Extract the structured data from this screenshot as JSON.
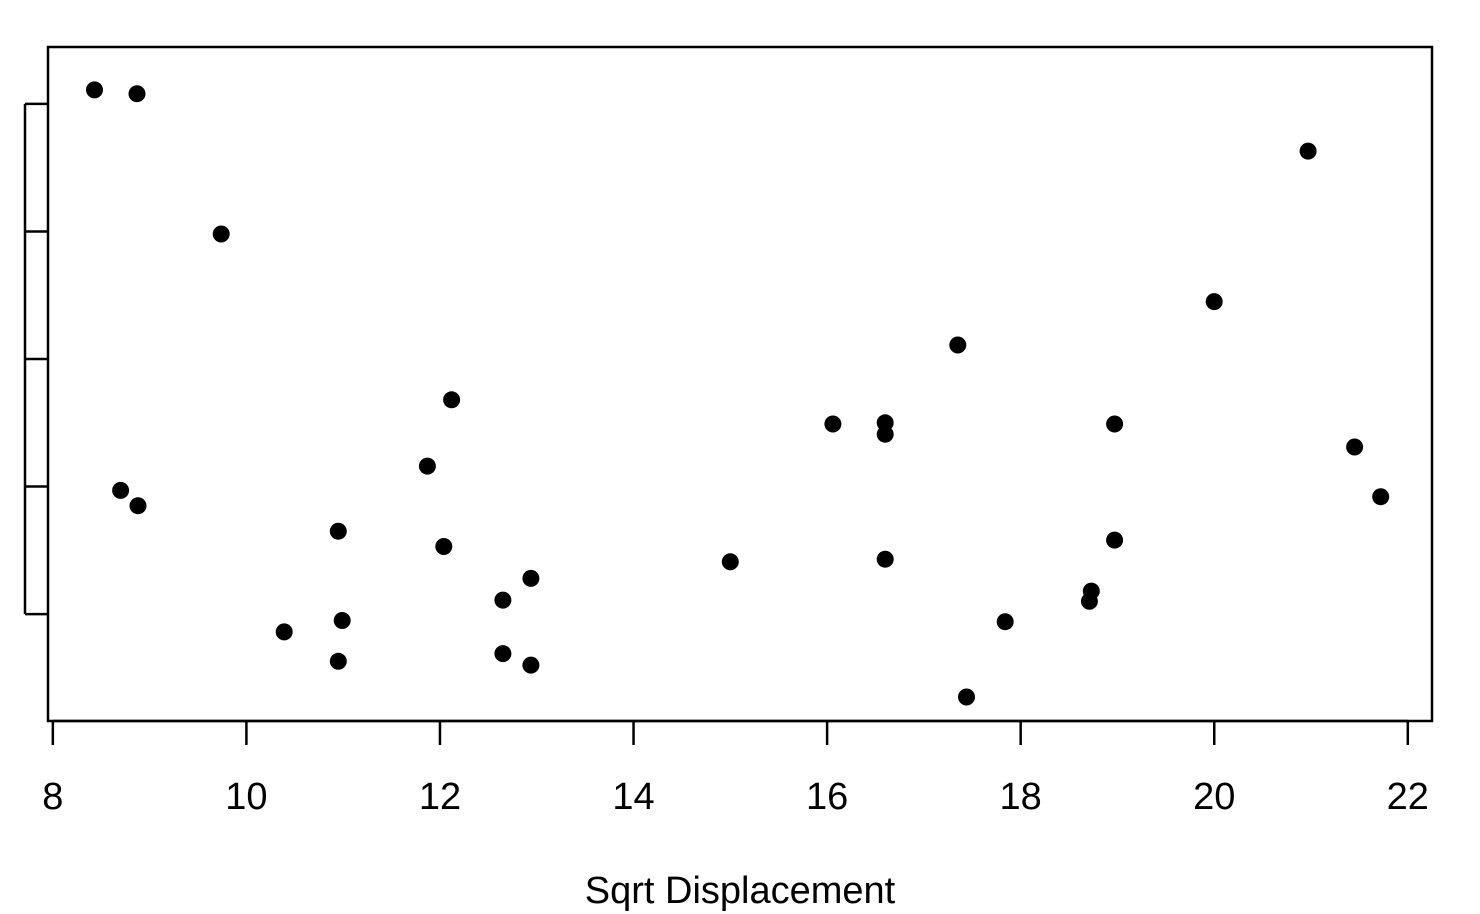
{
  "chart_data": {
    "type": "scatter",
    "title": "",
    "xlabel": "Sqrt Displacement",
    "ylabel": "",
    "xlim": [
      7.95,
      22.25
    ],
    "ylim": [
      0.35,
      5.25
    ],
    "x_ticks": [
      8,
      10,
      12,
      14,
      16,
      18,
      20,
      22
    ],
    "x_tick_labels": [
      "8",
      "10",
      "12",
      "14",
      "16",
      "18",
      "20",
      "22"
    ],
    "y_ticks": [
      1,
      2,
      3,
      4,
      5
    ],
    "y_tick_labels": [
      "",
      "",
      "",
      "",
      ""
    ],
    "grid": false,
    "legend": "none",
    "points": [
      {
        "x": 8.43,
        "y": 5.11
      },
      {
        "x": 8.87,
        "y": 5.08
      },
      {
        "x": 9.74,
        "y": 3.98
      },
      {
        "x": 8.7,
        "y": 1.97
      },
      {
        "x": 8.88,
        "y": 1.85
      },
      {
        "x": 10.39,
        "y": 0.86
      },
      {
        "x": 10.95,
        "y": 1.65
      },
      {
        "x": 10.99,
        "y": 0.95
      },
      {
        "x": 10.95,
        "y": 0.63
      },
      {
        "x": 11.87,
        "y": 2.16
      },
      {
        "x": 12.12,
        "y": 2.68
      },
      {
        "x": 12.04,
        "y": 1.53
      },
      {
        "x": 12.65,
        "y": 1.11
      },
      {
        "x": 12.65,
        "y": 0.69
      },
      {
        "x": 12.94,
        "y": 1.28
      },
      {
        "x": 12.94,
        "y": 0.6
      },
      {
        "x": 15.0,
        "y": 1.41
      },
      {
        "x": 16.06,
        "y": 2.49
      },
      {
        "x": 16.6,
        "y": 2.5
      },
      {
        "x": 16.6,
        "y": 2.41
      },
      {
        "x": 16.6,
        "y": 1.43
      },
      {
        "x": 17.35,
        "y": 3.11
      },
      {
        "x": 17.44,
        "y": 0.35
      },
      {
        "x": 17.84,
        "y": 0.94
      },
      {
        "x": 18.71,
        "y": 1.1
      },
      {
        "x": 18.73,
        "y": 1.18
      },
      {
        "x": 18.97,
        "y": 2.49
      },
      {
        "x": 18.97,
        "y": 1.58
      },
      {
        "x": 20.0,
        "y": 3.45
      },
      {
        "x": 20.97,
        "y": 4.63
      },
      {
        "x": 21.45,
        "y": 2.31
      },
      {
        "x": 21.72,
        "y": 1.92
      }
    ]
  }
}
